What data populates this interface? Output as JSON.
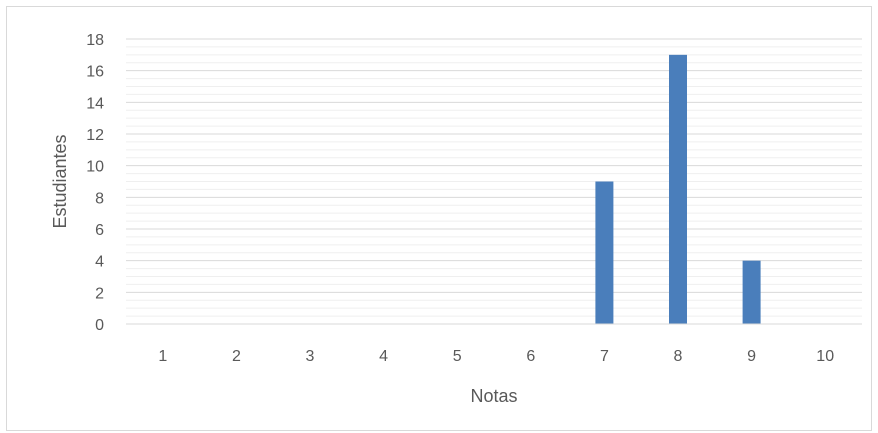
{
  "chart_data": {
    "type": "bar",
    "title": "",
    "xlabel": "Notas",
    "ylabel": "Estudiantes",
    "categories": [
      "1",
      "2",
      "3",
      "4",
      "5",
      "6",
      "7",
      "8",
      "9",
      "10"
    ],
    "values": [
      0,
      0,
      0,
      0,
      0,
      0,
      9,
      17,
      4,
      0
    ],
    "ylim": [
      0,
      18
    ],
    "yticks": [
      "0",
      "2",
      "4",
      "6",
      "8",
      "10",
      "12",
      "14",
      "16",
      "18"
    ],
    "grid": true,
    "legend": "none",
    "colors": {
      "bar": "#4a7ebb",
      "grid_major": "#d9d9d9",
      "grid_minor": "#efefef",
      "axis": "#d9d9d9",
      "text": "#595959"
    }
  }
}
